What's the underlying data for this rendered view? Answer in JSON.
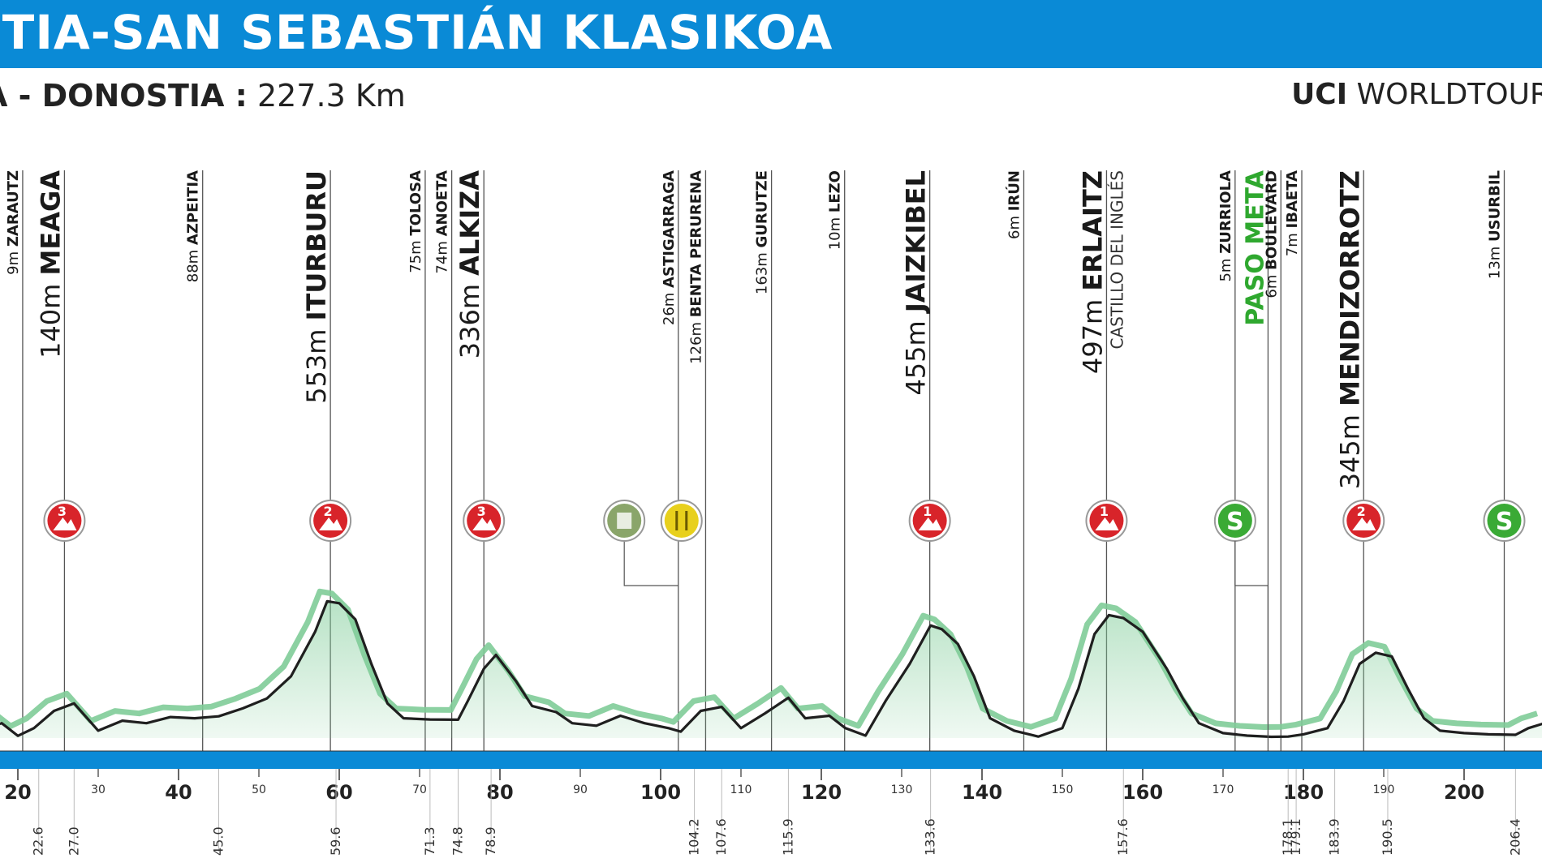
{
  "header": {
    "title": "STIA-SAN SEBASTIÁN KLASIKOA",
    "route": "A - DONOSTIA :",
    "distance": "227.3 Km",
    "uci_prefix": "UCI",
    "uci_suffix": "WORLDTOUR"
  },
  "colors": {
    "banner": "#0a8ad6",
    "profile_fill": "#7fcc98",
    "profile_dark": "#1a7a3a",
    "category_marker": "#d8242a",
    "sprint_marker": "#3aaa35",
    "sprint_text": "#2fa82f",
    "feed_marker": "#e8d01c",
    "waste_marker": "#8aa56a",
    "distance_bar": "#0a8ad6"
  },
  "chart_data": {
    "type": "area",
    "xlabel": "",
    "ylabel": "",
    "xlim": [
      15,
      210
    ],
    "ylim": [
      0,
      560
    ],
    "x_ticks_major": [
      20,
      40,
      60,
      80,
      100,
      120,
      140,
      160,
      180,
      200
    ],
    "x_ticks_minor": [
      30,
      50,
      70,
      90,
      110,
      130,
      150,
      170,
      190
    ],
    "elevation_profile": [
      [
        15,
        30
      ],
      [
        18,
        60
      ],
      [
        20,
        9
      ],
      [
        22,
        40
      ],
      [
        24.5,
        110
      ],
      [
        27,
        140
      ],
      [
        30,
        30
      ],
      [
        33,
        70
      ],
      [
        36,
        60
      ],
      [
        39,
        85
      ],
      [
        42,
        80
      ],
      [
        45,
        88
      ],
      [
        48,
        120
      ],
      [
        51,
        160
      ],
      [
        54,
        250
      ],
      [
        57,
        430
      ],
      [
        58.5,
        553
      ],
      [
        60,
        545
      ],
      [
        62,
        480
      ],
      [
        64,
        300
      ],
      [
        66,
        140
      ],
      [
        68,
        80
      ],
      [
        71.3,
        75
      ],
      [
        74.8,
        74
      ],
      [
        76,
        150
      ],
      [
        78,
        280
      ],
      [
        79.5,
        336
      ],
      [
        82,
        230
      ],
      [
        84,
        130
      ],
      [
        87,
        105
      ],
      [
        89,
        60
      ],
      [
        92,
        50
      ],
      [
        95,
        90
      ],
      [
        98,
        60
      ],
      [
        101,
        40
      ],
      [
        102.5,
        26
      ],
      [
        105,
        110
      ],
      [
        107.6,
        126
      ],
      [
        110,
        40
      ],
      [
        113,
        100
      ],
      [
        115.9,
        163
      ],
      [
        118,
        80
      ],
      [
        121,
        90
      ],
      [
        123,
        40
      ],
      [
        125.5,
        10
      ],
      [
        128,
        150
      ],
      [
        131,
        300
      ],
      [
        133.6,
        455
      ],
      [
        135,
        440
      ],
      [
        137,
        380
      ],
      [
        139,
        250
      ],
      [
        141,
        80
      ],
      [
        144,
        30
      ],
      [
        147,
        6
      ],
      [
        150,
        40
      ],
      [
        152,
        200
      ],
      [
        154,
        420
      ],
      [
        155.8,
        497
      ],
      [
        157.6,
        485
      ],
      [
        160,
        430
      ],
      [
        163,
        280
      ],
      [
        165,
        160
      ],
      [
        167,
        60
      ],
      [
        170,
        20
      ],
      [
        173,
        10
      ],
      [
        176,
        5
      ],
      [
        178.1,
        6
      ],
      [
        180,
        15
      ],
      [
        183,
        40
      ],
      [
        185,
        150
      ],
      [
        187,
        300
      ],
      [
        189,
        345
      ],
      [
        191,
        330
      ],
      [
        193,
        200
      ],
      [
        195,
        80
      ],
      [
        197,
        30
      ],
      [
        200,
        20
      ],
      [
        203,
        15
      ],
      [
        206.4,
        13
      ],
      [
        208,
        40
      ],
      [
        210,
        60
      ]
    ],
    "distance_marks": [
      "22.6",
      "27.0",
      "45.0",
      "59.6",
      "71.3",
      "74.8",
      "78.9",
      "104.2",
      "107.6",
      "115.9",
      "133.6",
      "157.6",
      "178.1",
      "179.1",
      "183.9",
      "190.5",
      "206.4"
    ],
    "locations": [
      {
        "km": 20.6,
        "alt": "9m",
        "name": "ZARAUTZ",
        "style": "small"
      },
      {
        "km": 25.8,
        "alt": "140m",
        "name": "MEAGA",
        "style": "major",
        "marker": "3"
      },
      {
        "km": 43.0,
        "alt": "88m",
        "name": "AZPEITIA",
        "style": "small"
      },
      {
        "km": 58.9,
        "alt": "553m",
        "name": "ITURBURU",
        "style": "major",
        "marker": "2"
      },
      {
        "km": 70.7,
        "alt": "75m",
        "name": "TOLOSA",
        "style": "small"
      },
      {
        "km": 74.0,
        "alt": "74m",
        "name": "ANOETA",
        "style": "small"
      },
      {
        "km": 78.0,
        "alt": "336m",
        "name": "ALKIZA",
        "style": "major",
        "marker": "3"
      },
      {
        "km": 102.2,
        "alt": "26m",
        "name": "ASTIGARRAGA",
        "style": "small",
        "marker": "feed"
      },
      {
        "km": 105.6,
        "alt": "126m",
        "name": "BENTA PERURENA",
        "style": "small"
      },
      {
        "km": 113.8,
        "alt": "163m",
        "name": "GURUTZE",
        "style": "small"
      },
      {
        "km": 122.9,
        "alt": "10m",
        "name": "LEZO",
        "style": "small"
      },
      {
        "km": 133.5,
        "alt": "455m",
        "name": "JAIZKIBEL",
        "style": "major",
        "marker": "1"
      },
      {
        "km": 145.2,
        "alt": "6m",
        "name": "IRÚN",
        "style": "small"
      },
      {
        "km": 155.5,
        "alt": "497m",
        "name": "ERLAITZ",
        "style": "major",
        "marker": "1",
        "sub": "CASTILLO DEL INGLÉS"
      },
      {
        "km": 171.5,
        "alt": "5m",
        "name": "ZURRIOLA",
        "style": "small",
        "marker": "S"
      },
      {
        "km": 175.6,
        "alt": "",
        "name": "PASO META",
        "style": "green"
      },
      {
        "km": 177.2,
        "alt": "6m",
        "name": "BOULEVARD",
        "style": "small"
      },
      {
        "km": 179.8,
        "alt": "7m",
        "name": "IBAETA",
        "style": "small"
      },
      {
        "km": 187.5,
        "alt": "345m",
        "name": "MENDIZORROTZ",
        "style": "major",
        "marker": "2"
      },
      {
        "km": 205.0,
        "alt": "13m",
        "name": "USURBIL",
        "style": "small",
        "marker": "S"
      }
    ],
    "extra_markers": [
      {
        "km": 98.0,
        "type": "waste"
      }
    ]
  }
}
